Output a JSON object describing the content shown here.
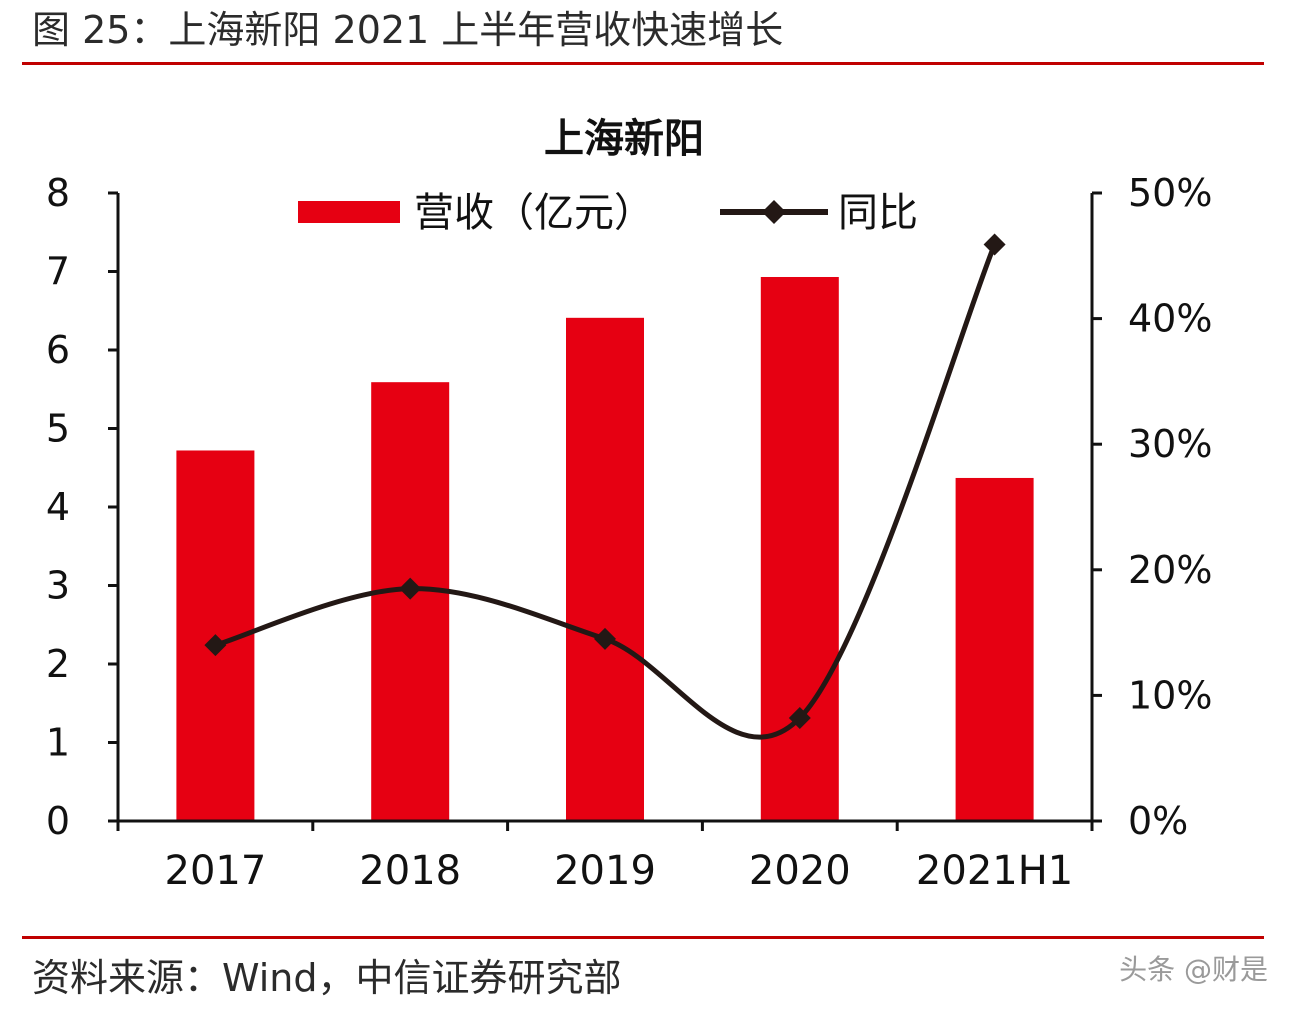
{
  "figure": {
    "title": "图 25：上海新阳 2021 上半年营收快速增长",
    "source": "资料来源：Wind，中信证券研究部",
    "watermark": "头条 @财是"
  },
  "chart_data": {
    "type": "bar+line",
    "title": "上海新阳",
    "categories": [
      "2017",
      "2018",
      "2019",
      "2020",
      "2021H1"
    ],
    "series": [
      {
        "name": "营收（亿元）",
        "type": "bar",
        "axis": "left",
        "color": "#e60012",
        "values": [
          4.72,
          5.59,
          6.41,
          6.93,
          4.37
        ]
      },
      {
        "name": "同比",
        "type": "line",
        "axis": "right",
        "color": "#231815",
        "values": [
          14.0,
          18.5,
          14.5,
          8.2,
          45.9
        ]
      }
    ],
    "y_left": {
      "ylim": [
        0,
        8
      ],
      "ticks": [
        "0",
        "1",
        "2",
        "3",
        "4",
        "5",
        "6",
        "7",
        "8"
      ]
    },
    "y_right": {
      "ylim": [
        0,
        50
      ],
      "ticks": [
        "0%",
        "10%",
        "20%",
        "30%",
        "40%",
        "50%"
      ]
    },
    "legend_position": "top",
    "grid": false
  }
}
